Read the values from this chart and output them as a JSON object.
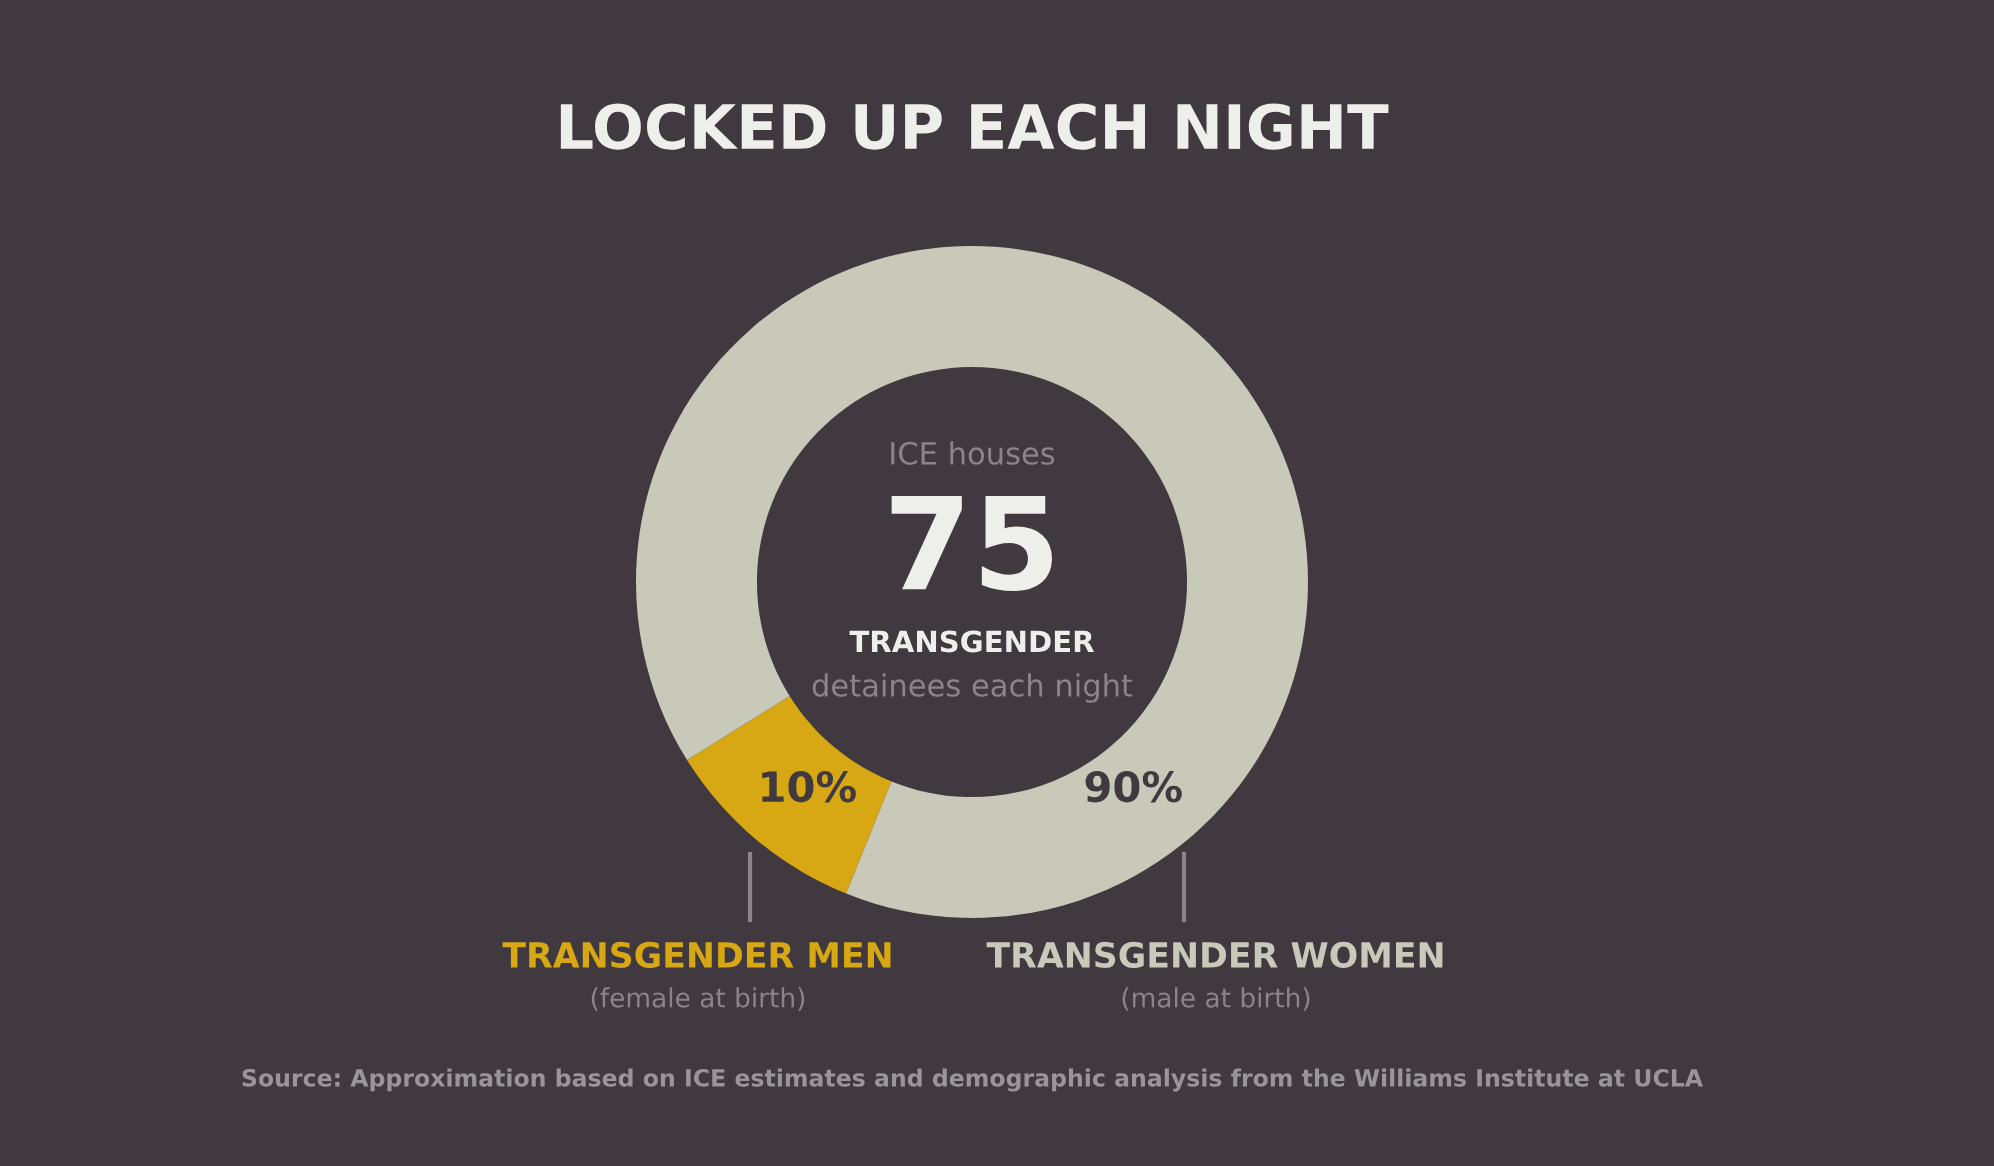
{
  "chart_data": {
    "type": "donut",
    "title": "LOCKED UP EACH NIGHT",
    "categories": [
      "TRANSGENDER MEN",
      "TRANSGENDER WOMEN"
    ],
    "values": [
      10,
      90
    ],
    "colors": [
      "#d8a714",
      "#c8c9b8"
    ],
    "value_labels": [
      "10%",
      "90%"
    ],
    "annotations": [
      "ICE houses",
      "75",
      "TRANSGENDER",
      "detainees each night",
      "(female at birth)",
      "(male at birth)",
      "Source: Approximation based on ICE estimates and demographic analysis from the Williams Institute at UCLA"
    ]
  }
}
